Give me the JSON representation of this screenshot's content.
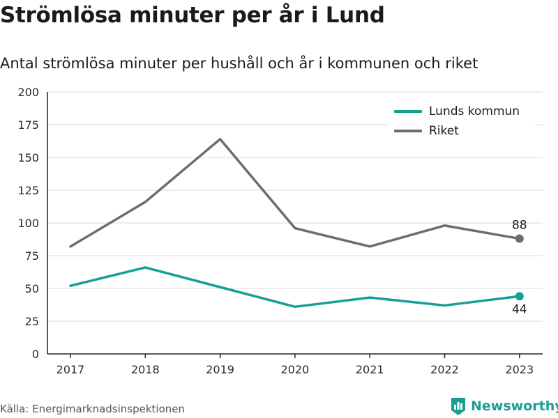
{
  "header": {
    "title": "Strömlösa minuter per år i Lund",
    "subtitle": "Antal strömlösa minuter per hushåll och år i kommunen och riket"
  },
  "footer": {
    "source": "Källa: Energimarknadsinspektionen",
    "brand": "Newsworthy",
    "brand_icon": "bar-chart-logo-icon"
  },
  "colors": {
    "lunds": "#14a098",
    "riket": "#6d6d6d",
    "grid": "#d9d9d9",
    "axis": "#222222",
    "brand": "#1a9e93"
  },
  "chart_data": {
    "type": "line",
    "title": "Strömlösa minuter per år i Lund",
    "subtitle": "Antal strömlösa minuter per hushåll och år i kommunen och riket",
    "xlabel": "",
    "ylabel": "",
    "categories": [
      "2017",
      "2018",
      "2019",
      "2020",
      "2021",
      "2022",
      "2023"
    ],
    "ylim": [
      0,
      200
    ],
    "yticks": [
      0,
      25,
      50,
      75,
      100,
      125,
      150,
      175,
      200
    ],
    "grid": "horizontal",
    "legend_position": "top-right",
    "series": [
      {
        "name": "Lunds kommun",
        "values": [
          52,
          66,
          51,
          36,
          43,
          37,
          44
        ],
        "color": "#14a098",
        "end_label": "44"
      },
      {
        "name": "Riket",
        "values": [
          82,
          116,
          164,
          96,
          82,
          98,
          88
        ],
        "color": "#6d6d6d",
        "end_label": "88"
      }
    ]
  }
}
